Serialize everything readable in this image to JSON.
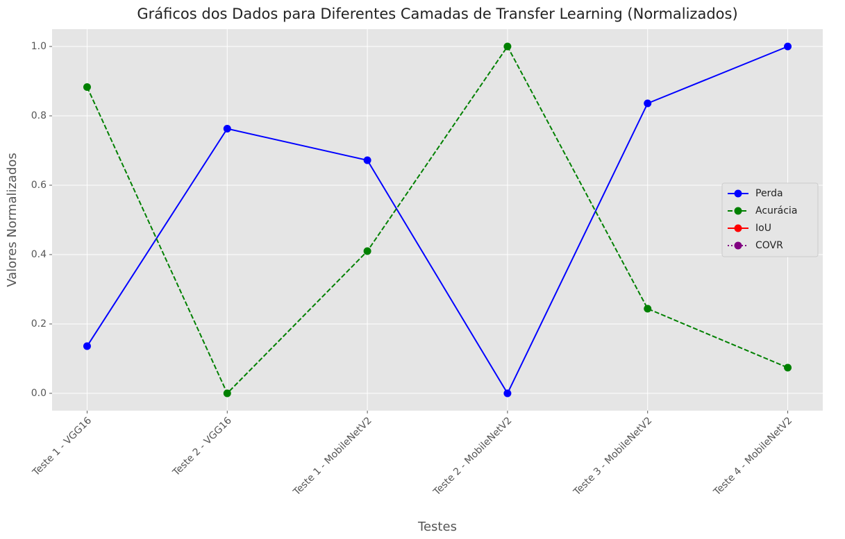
{
  "chart_data": {
    "type": "line",
    "title": "Gráficos dos Dados para Diferentes Camadas de Transfer Learning (Normalizados)",
    "xlabel": "Testes",
    "ylabel": "Valores Normalizados",
    "categories": [
      "Teste 1 - VGG16",
      "Teste 2 - VGG16",
      "Teste 1 - MobileNetV2",
      "Teste 2 - MobileNetV2",
      "Teste 3 - MobileNetV2",
      "Teste 4 - MobileNetV2"
    ],
    "series": [
      {
        "name": "Perda",
        "color": "#0000ff",
        "linestyle": "solid",
        "values": [
          0.136,
          0.763,
          0.672,
          0.0,
          0.836,
          1.0
        ]
      },
      {
        "name": "Acurácia",
        "color": "#008000",
        "linestyle": "dashed",
        "values": [
          0.883,
          0.0,
          0.41,
          1.0,
          0.244,
          0.074
        ]
      },
      {
        "name": "IoU",
        "color": "#ff0000",
        "linestyle": "solid",
        "values": [
          null,
          null,
          null,
          null,
          null,
          null
        ]
      },
      {
        "name": "COVR",
        "color": "#800080",
        "linestyle": "dotted",
        "values": [
          null,
          null,
          null,
          null,
          null,
          null
        ]
      }
    ],
    "ylim": [
      -0.05,
      1.05
    ],
    "yticks": [
      {
        "value": 0,
        "label": "0.0"
      },
      0.2,
      0.4,
      0.6,
      0.8,
      {
        "value": 1,
        "label": "1.0"
      }
    ],
    "grid": true,
    "legend": "center right"
  }
}
